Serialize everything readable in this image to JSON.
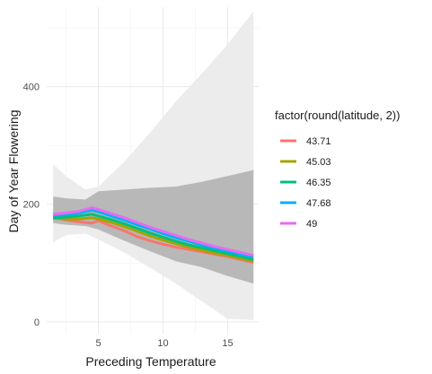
{
  "chart_data": {
    "type": "line",
    "xlabel": "Preceding Temperature",
    "ylabel": "Day of Year Flowering",
    "xlim": [
      1,
      17.4
    ],
    "ylim": [
      -20,
      535
    ],
    "x_ticks": [
      {
        "value": 5,
        "label": "5"
      },
      {
        "value": 10,
        "label": "10"
      },
      {
        "value": 15,
        "label": "15"
      }
    ],
    "y_ticks": [
      {
        "value": 0,
        "label": "0"
      },
      {
        "value": 200,
        "label": "200"
      },
      {
        "value": 400,
        "label": "400"
      }
    ],
    "grid": true,
    "legend": {
      "title": "factor(round(latitude, 2))",
      "position": "right"
    },
    "bands": [
      {
        "color": "#ebebeb",
        "x": [
          1.5,
          2.5,
          4.0,
          5.0,
          7.0,
          9.0,
          11.0,
          13.0,
          15.0,
          17.0
        ],
        "upper": [
          268,
          248,
          225,
          230,
          272,
          322,
          375,
          422,
          472,
          528
        ],
        "lower": [
          135,
          148,
          150,
          140,
          118,
          92,
          65,
          35,
          5,
          3
        ]
      },
      {
        "color": "#b3b3b3",
        "x": [
          1.5,
          2.5,
          4.0,
          5.0,
          7.0,
          9.0,
          11.0,
          13.0,
          15.0,
          17.0
        ],
        "upper": [
          213,
          210,
          208,
          222,
          225,
          228,
          230,
          238,
          248,
          258
        ],
        "lower": [
          168,
          165,
          163,
          157,
          138,
          120,
          103,
          93,
          78,
          65
        ]
      }
    ],
    "series": [
      {
        "name": "43.71",
        "color": "#F8766D",
        "x": [
          1.5,
          2.5,
          3.5,
          4.5,
          5.0,
          6.0,
          7.0,
          8.0,
          9.0,
          10.0,
          11.0,
          12.0,
          13.0,
          14.0,
          15.0,
          16.0,
          17.0
        ],
        "y": [
          178,
          173,
          170,
          168,
          172,
          163,
          155,
          145,
          138,
          132,
          127,
          123,
          119,
          115,
          111,
          106,
          101
        ]
      },
      {
        "name": "45.03",
        "color": "#A3A500",
        "x": [
          1.5,
          2.5,
          3.5,
          4.5,
          5.0,
          6.0,
          7.0,
          8.0,
          9.0,
          10.0,
          11.0,
          12.0,
          13.0,
          14.0,
          15.0,
          16.0,
          17.0
        ],
        "y": [
          176,
          175,
          175,
          177,
          175,
          169,
          162,
          154,
          146,
          139,
          133,
          127,
          122,
          117,
          113,
          108,
          103
        ]
      },
      {
        "name": "46.35",
        "color": "#00BF7D",
        "x": [
          1.5,
          2.5,
          3.5,
          4.5,
          5.0,
          6.0,
          7.0,
          8.0,
          9.0,
          10.0,
          11.0,
          12.0,
          13.0,
          14.0,
          15.0,
          16.0,
          17.0
        ],
        "y": [
          177,
          178,
          180,
          183,
          180,
          174,
          167,
          159,
          151,
          144,
          137,
          131,
          126,
          121,
          116,
          111,
          106
        ]
      },
      {
        "name": "47.68",
        "color": "#00B0F6",
        "x": [
          1.5,
          2.5,
          3.5,
          4.5,
          5.0,
          6.0,
          7.0,
          8.0,
          9.0,
          10.0,
          11.0,
          12.0,
          13.0,
          14.0,
          15.0,
          16.0,
          17.0
        ],
        "y": [
          181,
          182,
          185,
          190,
          187,
          180,
          173,
          165,
          158,
          150,
          143,
          137,
          131,
          125,
          120,
          115,
          110
        ]
      },
      {
        "name": "49",
        "color": "#E76BF3",
        "x": [
          1.5,
          2.5,
          3.5,
          4.5,
          5.0,
          6.0,
          7.0,
          8.0,
          9.0,
          10.0,
          11.0,
          12.0,
          13.0,
          14.0,
          15.0,
          16.0,
          17.0
        ],
        "y": [
          183,
          185,
          188,
          194,
          191,
          184,
          177,
          169,
          161,
          154,
          147,
          140,
          134,
          128,
          123,
          118,
          113
        ]
      }
    ]
  }
}
